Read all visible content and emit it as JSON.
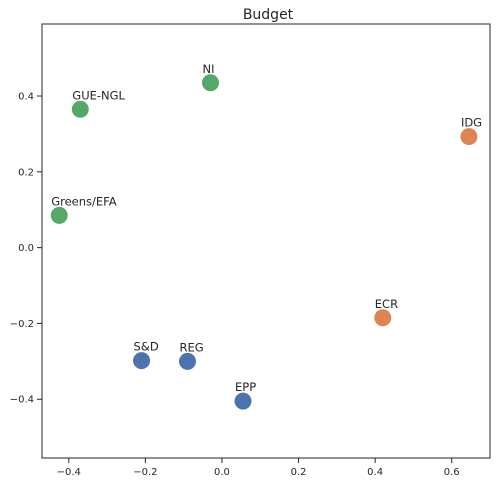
{
  "chart_data": {
    "type": "scatter",
    "title": "Budget",
    "xlabel": "",
    "ylabel": "",
    "xlim": [
      -0.47,
      0.7
    ],
    "ylim": [
      -0.555,
      0.59
    ],
    "xticks": [
      -0.4,
      -0.2,
      0.0,
      0.2,
      0.4,
      0.6
    ],
    "xtick_labels": [
      "−0.4",
      "−0.2",
      "0.0",
      "0.2",
      "0.4",
      "0.6"
    ],
    "yticks": [
      -0.4,
      -0.2,
      0.0,
      0.2,
      0.4
    ],
    "ytick_labels": [
      "−0.4",
      "−0.2",
      "0.0",
      "0.2",
      "0.4"
    ],
    "grid": false,
    "colors": {
      "blue": "#4c72b0",
      "orange": "#dd8452",
      "green": "#55a868"
    },
    "points": [
      {
        "label": "NI",
        "x": -0.03,
        "y": 0.435,
        "color": "#55a868"
      },
      {
        "label": "GUE-NGL",
        "x": -0.37,
        "y": 0.365,
        "color": "#55a868"
      },
      {
        "label": "Greens/EFA",
        "x": -0.425,
        "y": 0.085,
        "color": "#55a868"
      },
      {
        "label": "IDG",
        "x": 0.645,
        "y": 0.293,
        "color": "#dd8452"
      },
      {
        "label": "ECR",
        "x": 0.42,
        "y": -0.185,
        "color": "#dd8452"
      },
      {
        "label": "S&D",
        "x": -0.21,
        "y": -0.298,
        "color": "#4c72b0"
      },
      {
        "label": "REG",
        "x": -0.09,
        "y": -0.3,
        "color": "#4c72b0"
      },
      {
        "label": "EPP",
        "x": 0.055,
        "y": -0.405,
        "color": "#4c72b0"
      }
    ]
  }
}
